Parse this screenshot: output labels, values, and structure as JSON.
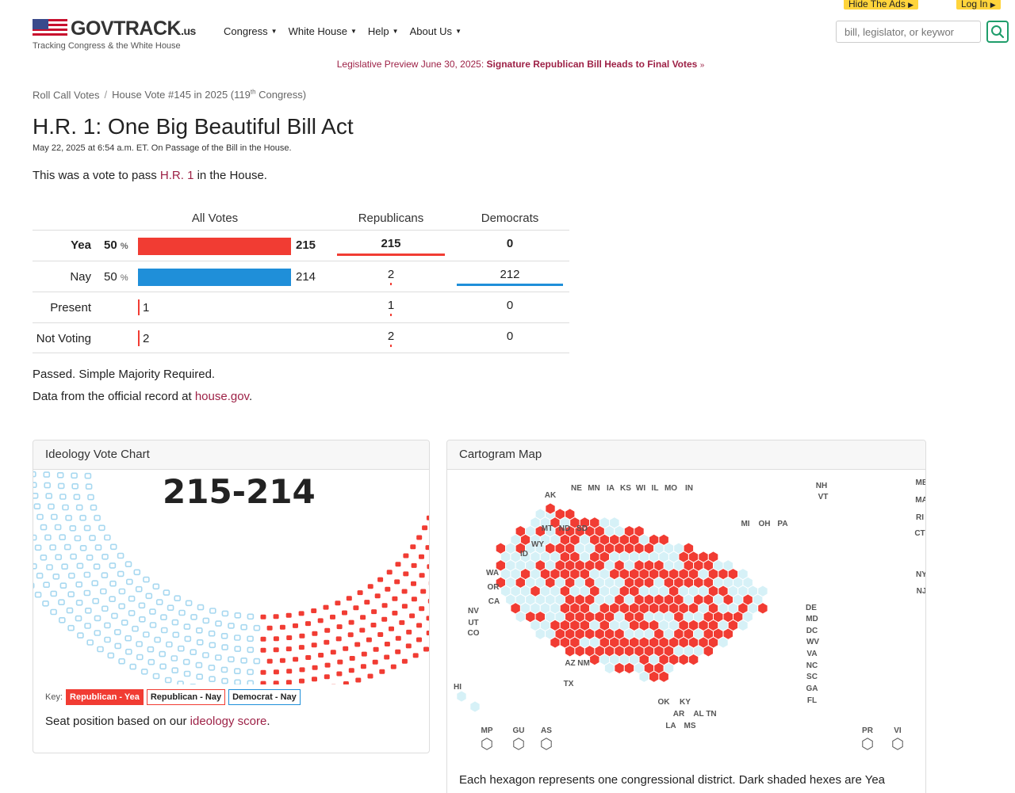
{
  "top_buttons": {
    "hide_ads": "Hide The Ads",
    "log_in": "Log In"
  },
  "logo": {
    "name": "GOVTRACK",
    "suffix": ".us",
    "tagline": "Tracking Congress & the White House"
  },
  "nav": [
    {
      "label": "Congress"
    },
    {
      "label": "White House"
    },
    {
      "label": "Help"
    },
    {
      "label": "About Us"
    }
  ],
  "search": {
    "placeholder": "bill, legislator, or keywor"
  },
  "preview": {
    "prefix": "Legislative Preview June 30, 2025:",
    "link": "Signature Republican Bill Heads to Final Votes",
    "suffix": "»"
  },
  "breadcrumb": {
    "root": "Roll Call Votes",
    "sep": "/",
    "current_pre": "House Vote #145 in 2025 (119",
    "current_sup": "th",
    "current_post": " Congress)"
  },
  "title": "H.R. 1: One Big Beautiful Bill Act",
  "subline": "May 22, 2025 at 6:54 a.m. ET. On Passage of the Bill in the House.",
  "intro": {
    "pre": "This was a vote to pass ",
    "link": "H.R. 1",
    "post": " in the House."
  },
  "vote_table": {
    "headers": {
      "all": "All Votes",
      "rep": "Republicans",
      "dem": "Democrats"
    },
    "rows": [
      {
        "label": "Yea",
        "pct": "50",
        "pct_sign": "%",
        "total": "215",
        "rep": "215",
        "dem": "0",
        "color": "#f13c33",
        "fraction": 0.5012
      },
      {
        "label": "Nay",
        "pct": "50",
        "pct_sign": "%",
        "total": "214",
        "rep": "2",
        "dem": "212",
        "color": "#1f8fd9",
        "fraction": 0.4988
      },
      {
        "label": "Present",
        "total": "1",
        "rep": "1",
        "dem": "0"
      },
      {
        "label": "Not Voting",
        "total": "2",
        "rep": "2",
        "dem": "0"
      }
    ]
  },
  "result": "Passed. Simple Majority Required.",
  "source": {
    "pre": "Data from the official record at ",
    "link": "house.gov",
    "post": "."
  },
  "ideology_panel": {
    "title": "Ideology Vote Chart",
    "score": "215-214",
    "key_label": "Key:",
    "keys": [
      "Republican - Yea",
      "Republican - Nay",
      "Democrat - Nay"
    ],
    "seat_pre": "Seat position based on our ",
    "seat_link": "ideology score",
    "seat_post": ".",
    "colors": {
      "rep_yea": "#f13c33",
      "rep_nay": "#ffffff",
      "dem_nay": "#a7d8f0"
    }
  },
  "cartogram_panel": {
    "title": "Cartogram Map",
    "footer": "Each hexagon represents one congressional district. Dark shaded hexes are Yea",
    "labels": [
      "AK",
      "NE",
      "MN",
      "IA",
      "KS",
      "WI",
      "IL",
      "MO",
      "IN",
      "NH",
      "VT",
      "ME",
      "MA",
      "RI",
      "CT",
      "NY",
      "NJ",
      "MI",
      "OH",
      "PA",
      "MT",
      "ND",
      "SD",
      "WY",
      "ID",
      "WA",
      "OR",
      "CA",
      "NV",
      "UT",
      "CO",
      "AZ",
      "NM",
      "TX",
      "OK",
      "KY",
      "AR",
      "AL",
      "TN",
      "LA",
      "MS",
      "DE",
      "MD",
      "DC",
      "WV",
      "VA",
      "NC",
      "SC",
      "GA",
      "FL",
      "HI",
      "MP",
      "GU",
      "AS",
      "PR",
      "VI"
    ]
  }
}
